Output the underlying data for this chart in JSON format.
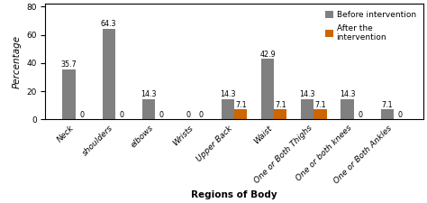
{
  "categories": [
    "Neck",
    "shoulders",
    "elbows",
    "Wrists",
    "Upper Back",
    "Waist",
    "One or Both Thighs",
    "One or both knees",
    "One or Both Ankles"
  ],
  "before": [
    35.7,
    64.3,
    14.3,
    0,
    14.3,
    42.9,
    14.3,
    14.3,
    7.1
  ],
  "after": [
    0,
    0,
    0,
    0,
    7.1,
    7.1,
    7.1,
    0,
    0
  ],
  "before_color": "#808080",
  "after_color": "#CC6600",
  "before_label": "Before intervention",
  "after_label": "After the\nintervention",
  "xlabel": "Regions of Body",
  "ylabel": "Percentage",
  "ylim": [
    0,
    82
  ],
  "yticks": [
    0,
    20,
    40,
    60,
    80
  ],
  "bar_width": 0.32,
  "axis_fontsize": 7.5,
  "tick_fontsize": 6.5,
  "legend_fontsize": 6.5,
  "label_fontsize": 5.8,
  "fig_width": 4.74,
  "fig_height": 2.25,
  "dpi": 100
}
